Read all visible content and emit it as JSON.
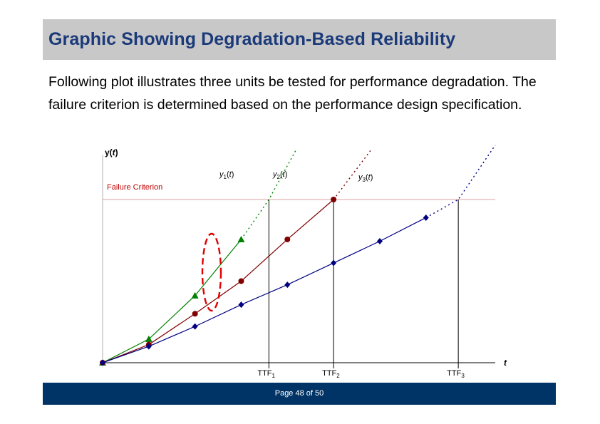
{
  "slide": {
    "title": "Graphic Showing Degradation-Based Reliability",
    "intro": "Following plot illustrates three units be tested for performance degradation. The failure criterion is determined based on the performance design specification.",
    "page_label": "Page 48 of 50"
  },
  "colors": {
    "title_text": "#1b3a7a",
    "title_band": "#c8c8c8",
    "footer_band": "#003366",
    "unit1": "#008000",
    "unit2": "#800000",
    "unit3": "#000080",
    "criterion": "#d08080",
    "highlight": "#e00000"
  },
  "chart_data": {
    "type": "line",
    "ylabel": "y(t)",
    "xlabel": "t",
    "criterion_label": "Failure Criterion",
    "criterion_value": 0.9,
    "xlim": [
      0,
      8.5
    ],
    "ylim": [
      0,
      1.2
    ],
    "series": [
      {
        "name": "y1(t)",
        "color": "#008000",
        "marker": "triangle",
        "points": [
          [
            0,
            0
          ],
          [
            1,
            0.13
          ],
          [
            2,
            0.37
          ],
          [
            3,
            0.68
          ]
        ],
        "extension": [
          [
            3,
            0.68
          ],
          [
            3.6,
            0.9
          ],
          [
            4.2,
            1.18
          ]
        ],
        "ttf": 3.6,
        "ttf_label": "TTF1"
      },
      {
        "name": "y2(t)",
        "color": "#800000",
        "marker": "circle",
        "points": [
          [
            0,
            0
          ],
          [
            1,
            0.1
          ],
          [
            2,
            0.27
          ],
          [
            3,
            0.45
          ],
          [
            4,
            0.68
          ],
          [
            5,
            0.9
          ]
        ],
        "extension": [
          [
            5,
            0.9
          ],
          [
            5.8,
            1.17
          ]
        ],
        "ttf": 5,
        "ttf_label": "TTF2"
      },
      {
        "name": "y3(t)",
        "color": "#000080",
        "marker": "diamond",
        "points": [
          [
            0,
            0
          ],
          [
            1,
            0.09
          ],
          [
            2,
            0.2
          ],
          [
            3,
            0.32
          ],
          [
            4,
            0.43
          ],
          [
            5,
            0.55
          ],
          [
            6,
            0.67
          ],
          [
            7,
            0.8
          ]
        ],
        "extension": [
          [
            7,
            0.8
          ],
          [
            7.7,
            0.9
          ],
          [
            8.5,
            1.2
          ]
        ],
        "ttf": 7.7,
        "ttf_label": "TTF3"
      }
    ]
  }
}
